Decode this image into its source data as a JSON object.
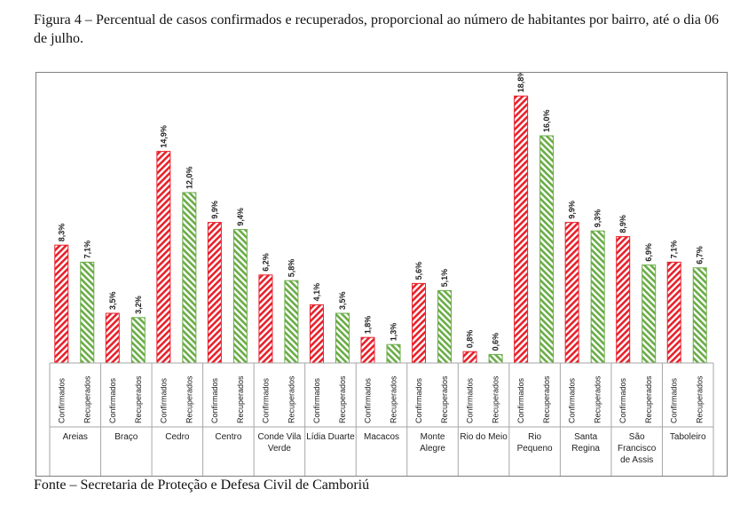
{
  "caption": "Figura 4 – Percentual de casos confirmados e recuperados, proporcional ao número de habitantes por bairro, até o dia 06 de julho.",
  "source": "Fonte – Secretaria de Proteção e Defesa Civil de Camboriú",
  "colors": {
    "confirmados": "#e8212b",
    "recuperados": "#6aac46",
    "axis": "#a6a6a6"
  },
  "chart_data": {
    "type": "bar",
    "categories": [
      "Areias",
      "Braço",
      "Cedro",
      "Centro",
      "Conde Vila Verde",
      "Lídia Duarte",
      "Macacos",
      "Monte Alegre",
      "Rio do Meio",
      "Rio Pequeno",
      "Santa Regina",
      "São Francisco de Assis",
      "Taboleiro"
    ],
    "category_lines": [
      [
        "Areias"
      ],
      [
        "Braço"
      ],
      [
        "Cedro"
      ],
      [
        "Centro"
      ],
      [
        "Conde Vila",
        "Verde"
      ],
      [
        "Lídia Duarte"
      ],
      [
        "Macacos"
      ],
      [
        "Monte",
        "Alegre"
      ],
      [
        "Rio do Meio"
      ],
      [
        "Rio",
        "Pequeno"
      ],
      [
        "Santa",
        "Regina"
      ],
      [
        "São",
        "Francisco",
        "de Assis"
      ],
      [
        "Taboleiro"
      ]
    ],
    "series": [
      {
        "name": "Confirmados",
        "values": [
          8.3,
          3.5,
          14.9,
          9.9,
          6.2,
          4.1,
          1.8,
          5.6,
          0.8,
          18.8,
          9.9,
          8.9,
          7.1
        ],
        "labels": [
          "8,3%",
          "3,5%",
          "14,9%",
          "9,9%",
          "6,2%",
          "4,1%",
          "1,8%",
          "5,6%",
          "0,8%",
          "18,8%",
          "9,9%",
          "8,9%",
          "7,1%"
        ]
      },
      {
        "name": "Recuperados",
        "values": [
          7.1,
          3.2,
          12.0,
          9.4,
          5.8,
          3.5,
          1.3,
          5.1,
          0.6,
          16.0,
          9.3,
          6.9,
          6.7
        ],
        "labels": [
          "7,1%",
          "3,2%",
          "12,0%",
          "9,4%",
          "5,8%",
          "3,5%",
          "1,3%",
          "5,1%",
          "0,6%",
          "16,0%",
          "9,3%",
          "6,9%",
          "6,7%"
        ]
      }
    ],
    "ylim": [
      0,
      20
    ],
    "grid": false,
    "legend": "none"
  }
}
